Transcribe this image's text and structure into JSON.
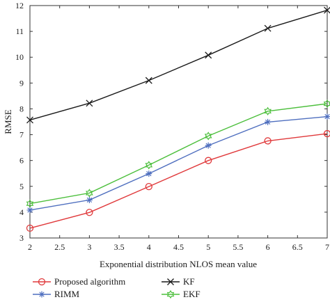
{
  "chart_data": {
    "type": "line",
    "xlabel": "Exponential distribution NLOS mean value",
    "ylabel": "RMSE",
    "xlim": [
      2,
      7
    ],
    "ylim": [
      3,
      12
    ],
    "x_ticks": [
      "2",
      "2.5",
      "3",
      "3.5",
      "4",
      "4.5",
      "5",
      "5.5",
      "6",
      "6.5",
      "7"
    ],
    "y_ticks": [
      "3",
      "4",
      "5",
      "6",
      "7",
      "8",
      "9",
      "10",
      "11",
      "12"
    ],
    "x": [
      2,
      3,
      4,
      5,
      6,
      7
    ],
    "series": [
      {
        "name": "Proposed algorithm",
        "color": "#e0393b",
        "marker": "circle",
        "values": [
          3.38,
          3.99,
          4.99,
          6.0,
          6.76,
          7.04
        ]
      },
      {
        "name": "RIMM",
        "color": "#4f6fbf",
        "marker": "asterisk",
        "values": [
          4.08,
          4.47,
          5.49,
          6.58,
          7.49,
          7.7
        ]
      },
      {
        "name": "KF",
        "color": "#1a1a1a",
        "marker": "x",
        "values": [
          7.57,
          8.22,
          9.1,
          10.08,
          11.12,
          11.82
        ]
      },
      {
        "name": "EKF",
        "color": "#4cbf3c",
        "marker": "star",
        "values": [
          4.33,
          4.74,
          5.82,
          6.95,
          7.91,
          8.2
        ]
      }
    ],
    "legend": "bottom",
    "grid": false
  }
}
